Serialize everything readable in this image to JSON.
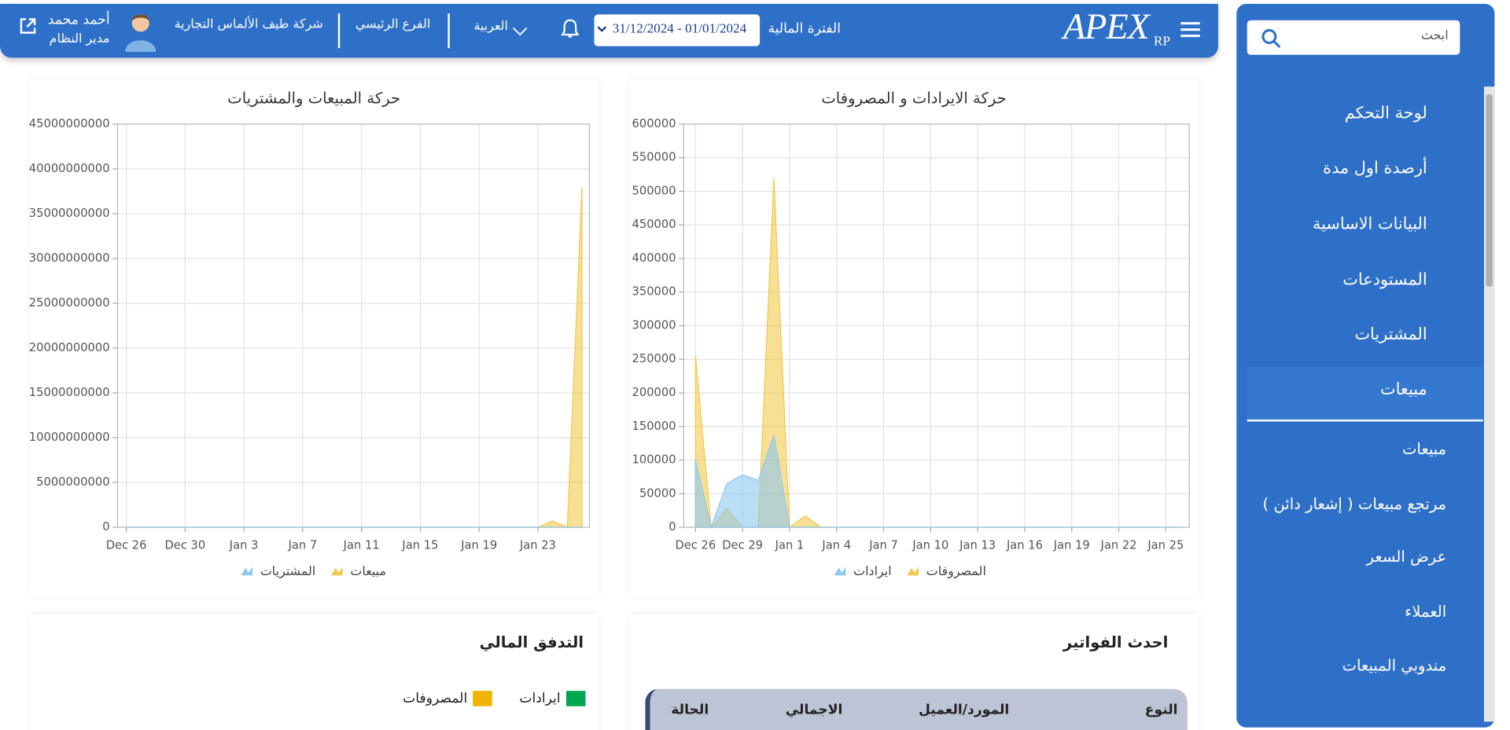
{
  "header": {
    "logo": "APEX",
    "logo_sub": "RP",
    "fiscal_period_label": "الفترة المالية",
    "date_range": "31/12/2024 - 01/01/2024",
    "language": "العربية",
    "branch": "الفرع الرئيسي",
    "company": "شركة طيف الألماس التجارية",
    "user_name": "أحمد محمد",
    "user_role": "مدير النظام"
  },
  "sidebar": {
    "search_placeholder": "ابحث",
    "menu": [
      "لوحة التحكم",
      "أرصدة اول مدة",
      "البيانات الاساسية",
      "المستودعات",
      "المشتريات",
      "مبيعات"
    ],
    "submenu": [
      "مبيعات",
      "مرتجع مبيعات ( إشعار دائن )",
      "عرض السعر",
      "العملاء",
      "مندوبي المبيعات"
    ]
  },
  "chart_data": [
    {
      "type": "area",
      "title": "حركة الايرادات و المصروفات",
      "categories": [
        "Dec 26",
        null,
        null,
        "Dec 29",
        null,
        null,
        "Jan 1",
        null,
        null,
        "Jan 4",
        null,
        null,
        "Jan 7",
        null,
        null,
        "Jan 10",
        null,
        null,
        "Jan 13",
        null,
        null,
        "Jan 16",
        null,
        null,
        "Jan 19",
        null,
        null,
        "Jan 22",
        null,
        null,
        "Jan 25",
        null
      ],
      "series": [
        {
          "name": "المصروفات",
          "color": "#f2c94c",
          "values": [
            255000,
            0,
            28000,
            0,
            0,
            520000,
            0,
            17000,
            0,
            0,
            0,
            0,
            0,
            0,
            0,
            0,
            0,
            0,
            0,
            0,
            0,
            0,
            0,
            0,
            0,
            0,
            0,
            0,
            0,
            0,
            0,
            0
          ]
        },
        {
          "name": "ايرادات",
          "color": "#8ec8f2",
          "values": [
            100000,
            0,
            65000,
            78000,
            70000,
            137000,
            0,
            0,
            0,
            0,
            0,
            0,
            0,
            0,
            0,
            0,
            0,
            0,
            0,
            0,
            0,
            0,
            0,
            0,
            0,
            0,
            0,
            0,
            0,
            0,
            0,
            0
          ]
        }
      ],
      "ylim": [
        0,
        600000
      ],
      "yticks": [
        0,
        50000,
        100000,
        150000,
        200000,
        250000,
        300000,
        350000,
        400000,
        450000,
        500000,
        550000,
        600000
      ],
      "grid": true
    },
    {
      "type": "area",
      "title": "حركة المبيعات والمشتريات",
      "categories": [
        "Dec 26",
        null,
        null,
        null,
        "Dec 30",
        null,
        null,
        null,
        "Jan 3",
        null,
        null,
        null,
        "Jan 7",
        null,
        null,
        null,
        "Jan 11",
        null,
        null,
        null,
        "Jan 15",
        null,
        null,
        null,
        "Jan 19",
        null,
        null,
        null,
        "Jan 23",
        null,
        null,
        null
      ],
      "series": [
        {
          "name": "مبيعات",
          "color": "#f2c94c",
          "values": [
            0,
            0,
            0,
            0,
            0,
            0,
            0,
            0,
            0,
            0,
            0,
            0,
            0,
            0,
            0,
            0,
            0,
            0,
            0,
            0,
            0,
            0,
            0,
            0,
            0,
            0,
            0,
            0,
            0,
            700000000,
            0,
            38000000000
          ]
        },
        {
          "name": "المشتريات",
          "color": "#8ec8f2",
          "values": [
            0,
            0,
            0,
            0,
            0,
            0,
            0,
            0,
            0,
            0,
            0,
            0,
            0,
            0,
            0,
            0,
            0,
            0,
            0,
            0,
            0,
            0,
            0,
            0,
            0,
            0,
            0,
            0,
            0,
            0,
            0,
            0
          ]
        }
      ],
      "ylim": [
        0,
        45000000000
      ],
      "yticks": [
        0,
        5000000000,
        10000000000,
        15000000000,
        20000000000,
        25000000000,
        30000000000,
        35000000000,
        40000000000,
        45000000000
      ],
      "grid": true
    }
  ],
  "latest_invoices": {
    "title": "احدث الفواتير",
    "columns": [
      "النوع",
      "المورد/العميل",
      "الاجمالي",
      "الحالة"
    ]
  },
  "cash_flow": {
    "title": "التدفق المالي",
    "legend": [
      {
        "name": "ايرادات",
        "color": "#00a650"
      },
      {
        "name": "المصروفات",
        "color": "#f0b400"
      }
    ]
  }
}
